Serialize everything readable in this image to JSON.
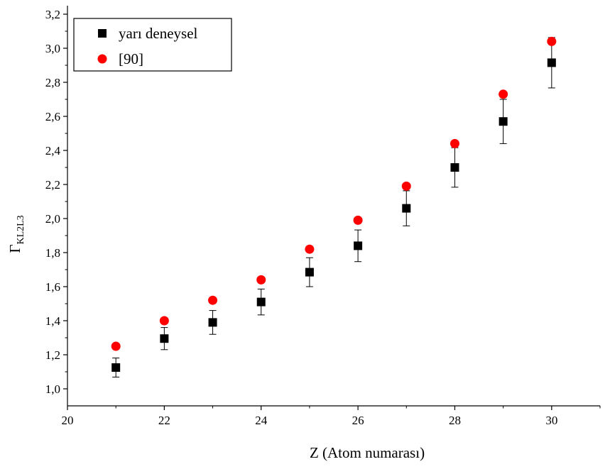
{
  "chart_data": {
    "type": "scatter",
    "title": "",
    "xlabel": "Z (Atom numarası)",
    "ylabel_main": "Γ",
    "ylabel_sub": "KL2L3",
    "xlim": [
      20,
      31
    ],
    "ylim": [
      0.9,
      3.25
    ],
    "x_ticks": [
      20,
      22,
      24,
      26,
      28,
      30
    ],
    "x_tick_labels": [
      "20",
      "22",
      "24",
      "26",
      "28",
      "30"
    ],
    "y_ticks": [
      1.0,
      1.2,
      1.4,
      1.6,
      1.8,
      2.0,
      2.2,
      2.4,
      2.6,
      2.8,
      3.0,
      3.2
    ],
    "y_tick_labels": [
      "1,0",
      "1,2",
      "1,4",
      "1,6",
      "1,8",
      "2,0",
      "2,2",
      "2,4",
      "2,6",
      "2,8",
      "3,0",
      "3,2"
    ],
    "grid": false,
    "legend_position": "top-left",
    "series": [
      {
        "name": "yarı deneysel",
        "marker": "square",
        "color": "#000000",
        "x": [
          21,
          22,
          23,
          24,
          25,
          26,
          27,
          28,
          29,
          30
        ],
        "y": [
          1.125,
          1.295,
          1.39,
          1.51,
          1.685,
          1.84,
          2.06,
          2.3,
          2.57,
          2.915
        ],
        "error": [
          0.056,
          0.065,
          0.07,
          0.076,
          0.085,
          0.093,
          0.103,
          0.116,
          0.13,
          0.148
        ]
      },
      {
        "name": "[90]",
        "marker": "circle",
        "color": "#ff0000",
        "x": [
          21,
          22,
          23,
          24,
          25,
          26,
          27,
          28,
          29,
          30
        ],
        "y": [
          1.25,
          1.4,
          1.52,
          1.64,
          1.82,
          1.99,
          2.19,
          2.44,
          2.73,
          3.04
        ]
      }
    ]
  }
}
